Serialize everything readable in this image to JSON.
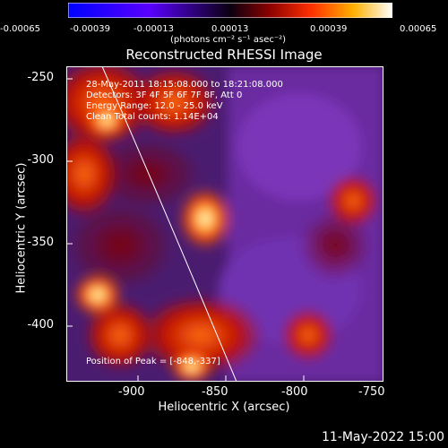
{
  "colorbar": {
    "ticks": [
      "-0.00065",
      "-0.00039",
      "-0.00013",
      "0.00013",
      "0.00039",
      "0.00065"
    ],
    "units": "(photons cm⁻² s⁻¹ asec⁻²)"
  },
  "title": "Reconstructed RHESSI Image",
  "info": {
    "line1": "28-May-2011 18:15:08.000 to 18:21:08.000",
    "line2": "Detectors: 3F 4F 5F 6F 7F 8F, Att 0",
    "line3": "Energy Range: 12.0 - 25.0 keV",
    "line4": "Clean    Total counts: 1.14E+04",
    "peak": "Position of Peak = [-848,-337]"
  },
  "axes": {
    "xlabel": "Heliocentric X (arcsec)",
    "ylabel": "Heliocentric Y (arcsec)",
    "xticks": [
      "-900",
      "-850",
      "-800",
      "-750"
    ],
    "yticks": [
      "-250",
      "-300",
      "-350",
      "-400"
    ]
  },
  "footer_date": "11-May-2022 15:00",
  "colors": {
    "background": "#000000",
    "limb": "#ffffff",
    "map_low": "#6a2aa0",
    "map_high": "#ffffff"
  }
}
